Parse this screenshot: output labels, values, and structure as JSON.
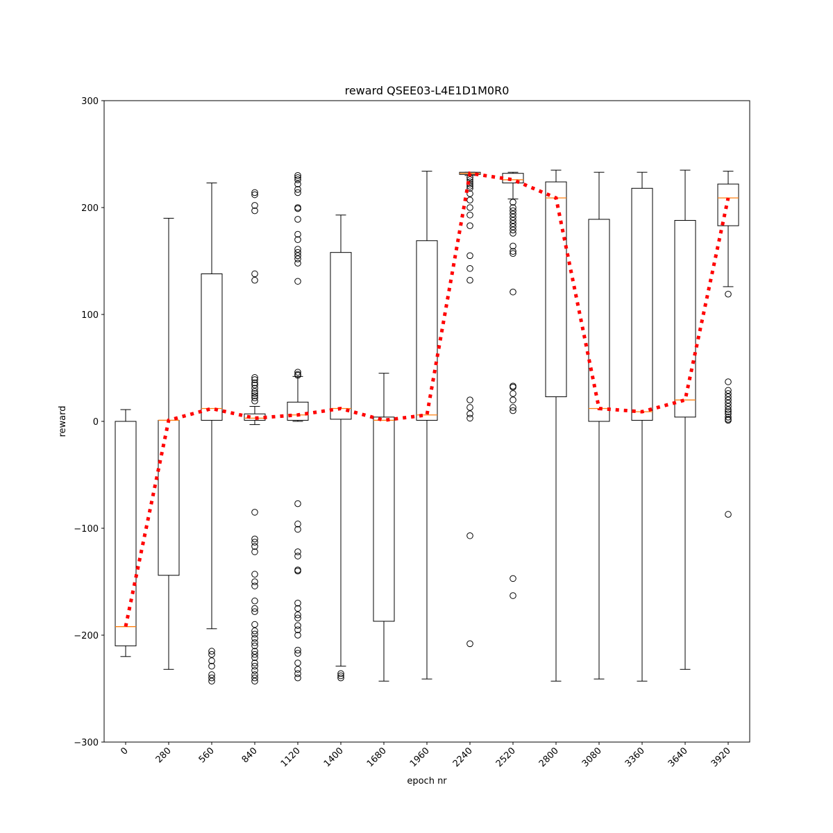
{
  "chart_data": {
    "type": "box",
    "title": "reward QSEE03-L4E1D1M0R0",
    "xlabel": "epoch nr",
    "ylabel": "reward",
    "ylim": [
      -300,
      300
    ],
    "yticks": [
      -300,
      -200,
      -100,
      0,
      100,
      200,
      300
    ],
    "yticks_labels": [
      "−300",
      "−200",
      "−100",
      "0",
      "100",
      "200",
      "300"
    ],
    "categories": [
      "0",
      "280",
      "560",
      "840",
      "1120",
      "1400",
      "1680",
      "1960",
      "2240",
      "2520",
      "2800",
      "3080",
      "3360",
      "3640",
      "3920"
    ],
    "grid": false,
    "colors": {
      "box": "#000000",
      "median": "#ff7f0e",
      "trend": "#ff0000"
    },
    "boxes": [
      {
        "category": "0",
        "whisker_low": -220,
        "q1": -210,
        "median": -192,
        "q3": 0,
        "whisker_high": 11,
        "fliers": []
      },
      {
        "category": "280",
        "whisker_low": -232,
        "q1": -144,
        "median": 1,
        "q3": 1,
        "whisker_high": 190,
        "fliers": []
      },
      {
        "category": "560",
        "whisker_low": -194,
        "q1": 1,
        "median": 12,
        "q3": 138,
        "whisker_high": 223,
        "fliers": [
          -215,
          -218,
          -224,
          -229,
          -237,
          -240,
          -243
        ]
      },
      {
        "category": "840",
        "whisker_low": -3,
        "q1": 1,
        "median": 3,
        "q3": 7,
        "whisker_high": 14,
        "fliers": [
          214,
          212,
          202,
          197,
          138,
          132,
          41,
          39,
          36,
          34,
          31,
          28,
          26,
          24,
          22,
          19,
          -85,
          -110,
          -113,
          -117,
          -122,
          -143,
          -150,
          -154,
          -168,
          -175,
          -178,
          -190,
          -196,
          -199,
          -203,
          -207,
          -210,
          -215,
          -218,
          -221,
          -226,
          -229,
          -233,
          -237,
          -240,
          -243
        ]
      },
      {
        "category": "1120",
        "whisker_low": 0,
        "q1": 1,
        "median": 6,
        "q3": 18,
        "whisker_high": 42,
        "fliers": [
          230,
          228,
          226,
          222,
          217,
          214,
          200,
          199,
          189,
          175,
          170,
          161,
          158,
          155,
          152,
          148,
          131,
          46,
          44,
          43,
          -77,
          -96,
          -101,
          -122,
          -126,
          -139,
          -140,
          -170,
          -175,
          -181,
          -184,
          -191,
          -195,
          -200,
          -214,
          -217,
          -226,
          -232,
          -236,
          -240
        ]
      },
      {
        "category": "1400",
        "whisker_low": -229,
        "q1": 2,
        "median": 12,
        "q3": 158,
        "whisker_high": 193,
        "fliers": [
          -236,
          -238,
          -240
        ]
      },
      {
        "category": "1680",
        "whisker_low": -243,
        "q1": -187,
        "median": 1,
        "q3": 4,
        "whisker_high": 45,
        "fliers": []
      },
      {
        "category": "1960",
        "whisker_low": -241,
        "q1": 1,
        "median": 6,
        "q3": 169,
        "whisker_high": 234,
        "fliers": []
      },
      {
        "category": "2240",
        "whisker_low": 230,
        "q1": 231,
        "median": 232,
        "q3": 233,
        "whisker_high": 233,
        "fliers": [
          228,
          226,
          224,
          222,
          220,
          218,
          213,
          207,
          200,
          193,
          183,
          155,
          143,
          132,
          20,
          13,
          7,
          3,
          -107,
          -208
        ]
      },
      {
        "category": "2520",
        "whisker_low": 208,
        "q1": 223,
        "median": 226,
        "q3": 232,
        "whisker_high": 233,
        "fliers": [
          205,
          200,
          197,
          194,
          191,
          188,
          185,
          182,
          179,
          176,
          164,
          159,
          157,
          121,
          33,
          32,
          26,
          20,
          13,
          10,
          -147,
          -163
        ]
      },
      {
        "category": "2800",
        "whisker_low": -243,
        "q1": 23,
        "median": 209,
        "q3": 224,
        "whisker_high": 235,
        "fliers": []
      },
      {
        "category": "3080",
        "whisker_low": -241,
        "q1": 0,
        "median": 12,
        "q3": 189,
        "whisker_high": 233,
        "fliers": []
      },
      {
        "category": "3360",
        "whisker_low": -243,
        "q1": 1,
        "median": 9,
        "q3": 218,
        "whisker_high": 233,
        "fliers": []
      },
      {
        "category": "3640",
        "whisker_low": -232,
        "q1": 4,
        "median": 20,
        "q3": 188,
        "whisker_high": 235,
        "fliers": []
      },
      {
        "category": "3920",
        "whisker_low": 126,
        "q1": 183,
        "median": 209,
        "q3": 222,
        "whisker_high": 234,
        "fliers": [
          119,
          37,
          29,
          26,
          23,
          20,
          17,
          14,
          11,
          9,
          7,
          4,
          2,
          1,
          -87
        ]
      }
    ],
    "trend_line": {
      "style": "dotted",
      "values": [
        -192,
        1,
        12,
        3,
        6,
        12,
        1,
        6,
        232,
        226,
        209,
        12,
        9,
        20,
        209
      ]
    }
  }
}
